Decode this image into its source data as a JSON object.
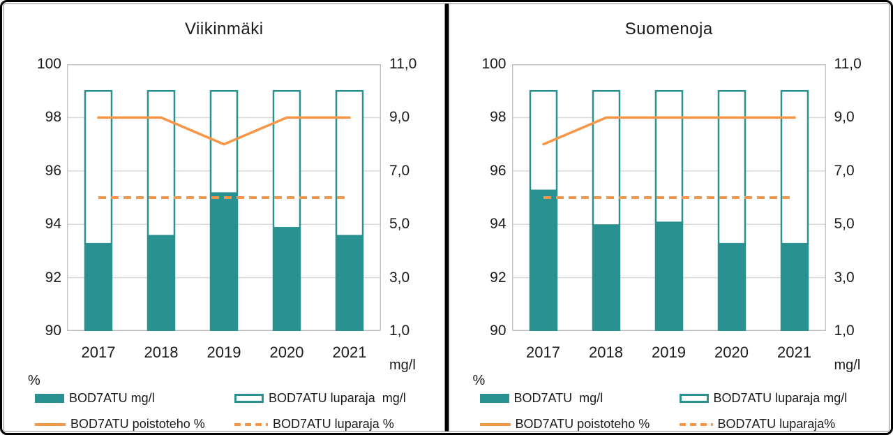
{
  "palette": {
    "teal": "#2A9191",
    "orange": "#F79646",
    "grid": "#D9D9D9",
    "plot_border": "#BFBFBF",
    "text": "#1a1a1a",
    "frame": "#000000"
  },
  "chart_data": [
    {
      "type": "bar",
      "subtype": "combo-bar-line-dual-axis",
      "title": "Viikinmäki",
      "categories": [
        "2017",
        "2018",
        "2019",
        "2020",
        "2021"
      ],
      "left_axis": {
        "label": "%",
        "min": 90,
        "max": 100,
        "ticks": [
          "100",
          "98",
          "96",
          "94",
          "92",
          "90"
        ]
      },
      "right_axis": {
        "label": "mg/l",
        "min": 1.0,
        "max": 11.0,
        "ticks": [
          "11,0",
          "9,0",
          "7,0",
          "5,0",
          "3,0",
          "1,0"
        ]
      },
      "grid": "on",
      "legend_position": "bottom",
      "series": [
        {
          "name": "BOD7ATU mg/l",
          "type": "bar-filled",
          "axis": "right",
          "values": [
            4.3,
            4.6,
            6.2,
            4.9,
            4.6
          ]
        },
        {
          "name": "BOD7ATU luparaja  mg/l",
          "type": "bar-outline",
          "axis": "right",
          "values": [
            10.0,
            10.0,
            10.0,
            10.0,
            10.0
          ]
        },
        {
          "name": "BOD7ATU poistoteho %",
          "type": "line-solid",
          "axis": "left",
          "values": [
            98,
            98,
            97,
            98,
            98
          ]
        },
        {
          "name": "BOD7ATU luparaja %",
          "type": "line-dashed",
          "axis": "left",
          "values": [
            95,
            95,
            95,
            95,
            95
          ]
        }
      ]
    },
    {
      "type": "bar",
      "subtype": "combo-bar-line-dual-axis",
      "title": "Suomenoja",
      "categories": [
        "2017",
        "2018",
        "2019",
        "2020",
        "2021"
      ],
      "left_axis": {
        "label": "%",
        "min": 90,
        "max": 100,
        "ticks": [
          "100",
          "98",
          "96",
          "94",
          "92",
          "90"
        ]
      },
      "right_axis": {
        "label": "mg/l",
        "min": 1.0,
        "max": 11.0,
        "ticks": [
          "11,0",
          "9,0",
          "7,0",
          "5,0",
          "3,0",
          "1,0"
        ]
      },
      "grid": "on",
      "legend_position": "bottom",
      "series": [
        {
          "name": "BOD7ATU  mg/l",
          "type": "bar-filled",
          "axis": "right",
          "values": [
            6.3,
            5.0,
            5.1,
            4.3,
            4.3
          ]
        },
        {
          "name": "BOD7ATU luparaja mg/l",
          "type": "bar-outline",
          "axis": "right",
          "values": [
            10.0,
            10.0,
            10.0,
            10.0,
            10.0
          ]
        },
        {
          "name": "BOD7ATU poistoteho %",
          "type": "line-solid",
          "axis": "left",
          "values": [
            97,
            98,
            98,
            98,
            98
          ]
        },
        {
          "name": "BOD7ATU luparaja%",
          "type": "line-dashed",
          "axis": "left",
          "values": [
            95,
            95,
            95,
            95,
            95
          ]
        }
      ]
    }
  ]
}
